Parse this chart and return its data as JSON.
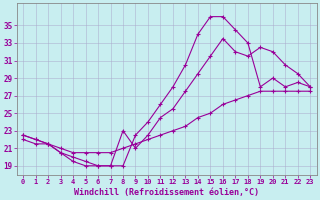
{
  "xlabel": "Windchill (Refroidissement éolien,°C)",
  "xticks": [
    0,
    1,
    2,
    3,
    4,
    5,
    6,
    7,
    8,
    9,
    10,
    11,
    12,
    13,
    14,
    15,
    16,
    17,
    18,
    19,
    20,
    21,
    22,
    23
  ],
  "yticks": [
    19,
    21,
    23,
    25,
    27,
    29,
    31,
    33,
    35
  ],
  "bg_color": "#c8eef0",
  "line_color": "#990099",
  "grid_color": "#aaaacc",
  "curve1_x": [
    0,
    1,
    2,
    3,
    4,
    5,
    6,
    7,
    8,
    9,
    10,
    11,
    12,
    13,
    14,
    15,
    16,
    17,
    18,
    19,
    20,
    21,
    22,
    23
  ],
  "curve1_y": [
    22.5,
    22.0,
    21.5,
    20.5,
    19.5,
    19.0,
    19.0,
    19.0,
    19.0,
    22.5,
    24.0,
    26.0,
    28.0,
    30.5,
    34.0,
    36.0,
    36.0,
    34.5,
    33.0,
    28.0,
    29.0,
    28.0,
    28.5,
    28.0
  ],
  "curve2_x": [
    0,
    1,
    2,
    3,
    4,
    5,
    6,
    7,
    8,
    9,
    10,
    11,
    12,
    13,
    14,
    15,
    16,
    17,
    18,
    19,
    20,
    21,
    22,
    23
  ],
  "curve2_y": [
    22.5,
    22.0,
    21.5,
    20.5,
    20.0,
    19.5,
    19.0,
    19.0,
    23.0,
    21.0,
    22.5,
    24.5,
    25.5,
    27.5,
    29.5,
    31.5,
    33.5,
    32.0,
    31.5,
    32.5,
    32.0,
    30.5,
    29.5,
    28.0
  ],
  "curve3_x": [
    0,
    1,
    2,
    3,
    4,
    5,
    6,
    7,
    8,
    9,
    10,
    11,
    12,
    13,
    14,
    15,
    16,
    17,
    18,
    19,
    20,
    21,
    22,
    23
  ],
  "curve3_y": [
    22.0,
    21.5,
    21.5,
    21.0,
    20.5,
    20.5,
    20.5,
    20.5,
    21.0,
    21.5,
    22.0,
    22.5,
    23.0,
    23.5,
    24.5,
    25.0,
    26.0,
    26.5,
    27.0,
    27.5,
    27.5,
    27.5,
    27.5,
    27.5
  ]
}
